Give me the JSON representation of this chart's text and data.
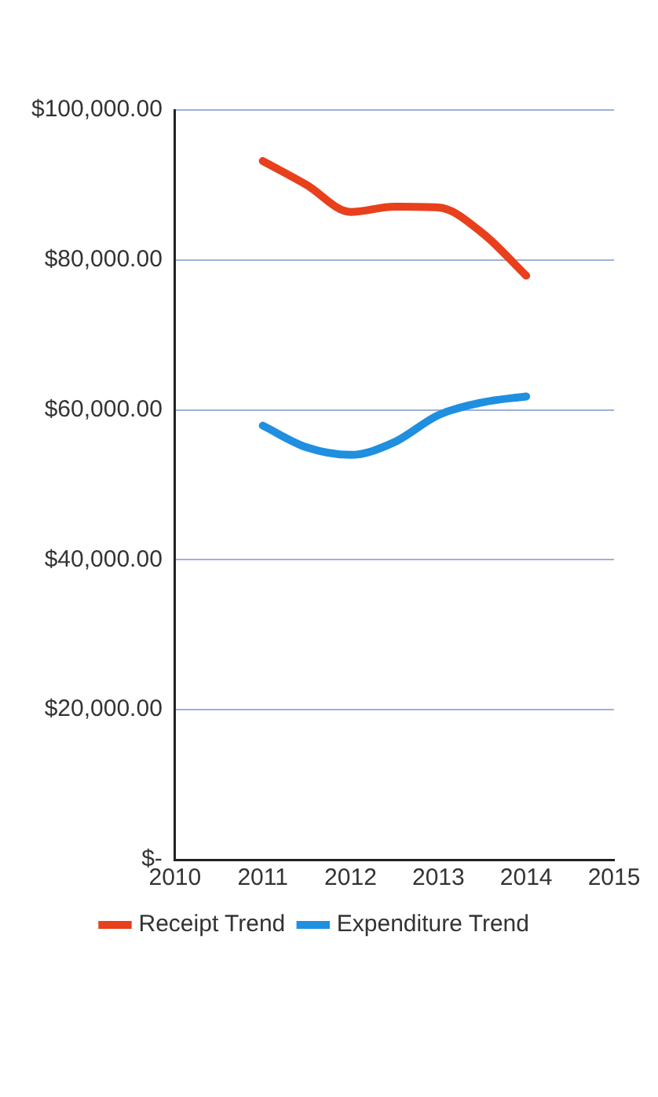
{
  "chart_data": {
    "type": "line",
    "series": [
      {
        "name": "Receipt Trend",
        "color": "#e8401c",
        "x": [
          2011,
          2011.5,
          2012,
          2012.5,
          2013,
          2013.5,
          2014
        ],
        "values": [
          93200,
          90000,
          86400,
          87100,
          87000,
          83600,
          77900
        ]
      },
      {
        "name": "Expenditure Trend",
        "color": "#1f8fe0",
        "x": [
          2011,
          2011.5,
          2012,
          2012.5,
          2013,
          2013.5,
          2014
        ],
        "values": [
          57900,
          55000,
          54000,
          55700,
          59300,
          61000,
          61800
        ]
      }
    ],
    "xlim": [
      2010,
      2015
    ],
    "xticks": [
      2010,
      2011,
      2012,
      2013,
      2014,
      2015
    ],
    "ylim": [
      0,
      100000
    ],
    "yticks": [
      {
        "value": 0,
        "label": "$-"
      },
      {
        "value": 20000,
        "label": "$20,000.00"
      },
      {
        "value": 40000,
        "label": "$40,000.00"
      },
      {
        "value": 60000,
        "label": "$60,000.00"
      },
      {
        "value": 80000,
        "label": "$80,000.00"
      },
      {
        "value": 100000,
        "label": "$100,000.00"
      }
    ],
    "grid": "y",
    "legend": "bottom",
    "marker": "none",
    "line_style": "solid"
  }
}
